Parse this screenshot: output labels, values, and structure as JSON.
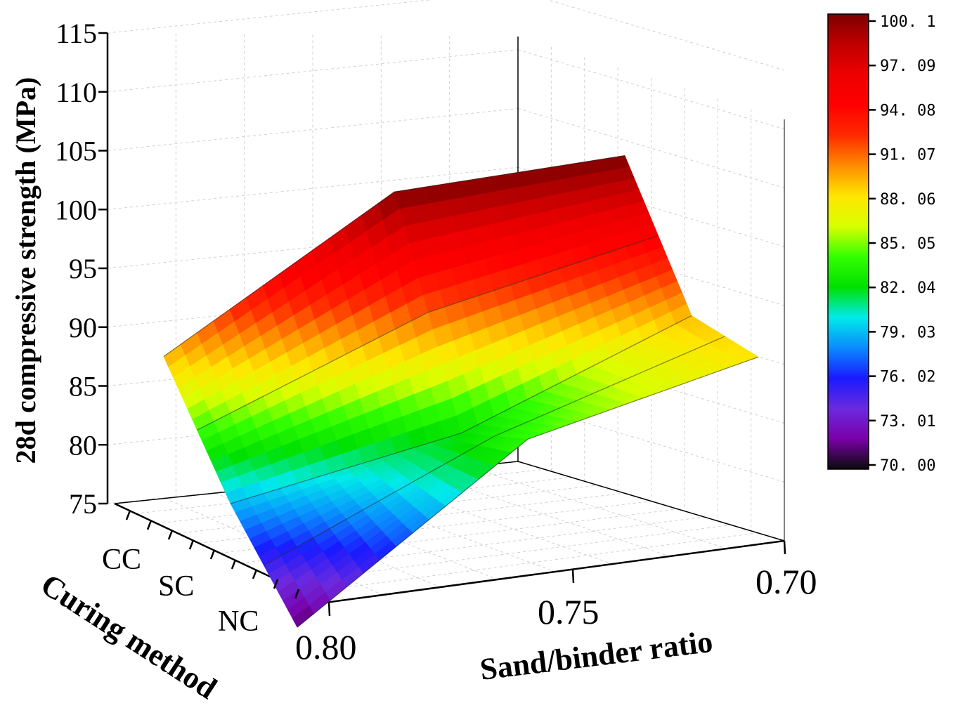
{
  "chart_data": {
    "type": "surface",
    "title": "",
    "zlabel": "28d compressive strength (MPa)",
    "xlabel": "Sand/binder ratio",
    "ylabel": "Curing method",
    "zlim": [
      75,
      115
    ],
    "zticks": [
      "75",
      "80",
      "85",
      "90",
      "95",
      "100",
      "105",
      "110",
      "115"
    ],
    "x_categories": [
      "0.80",
      "0.75",
      "0.70"
    ],
    "y_categories": [
      "CC",
      "SC",
      "NC"
    ],
    "surface": {
      "CC": [
        89,
        100,
        100.1
      ],
      "SC": [
        79,
        82,
        89
      ],
      "NC": [
        71,
        84,
        88
      ]
    },
    "colorbar": {
      "labels": [
        "100. 1",
        "97. 09",
        "94. 08",
        "91. 07",
        "88. 06",
        "85. 05",
        "82. 04",
        "79. 03",
        "76. 02",
        "73. 01",
        "70. 00"
      ],
      "min": 70.0,
      "max": 100.1,
      "colors": [
        "#0a0a0a",
        "#7a00a8",
        "#6a2adf",
        "#1a1aff",
        "#0a8bff",
        "#00eaea",
        "#00e000",
        "#33ff00",
        "#d8ff00",
        "#ffe600",
        "#ff8c00",
        "#ff2a00",
        "#ff0000",
        "#ee0000",
        "#c00000",
        "#7e0000"
      ]
    },
    "grid": true
  }
}
